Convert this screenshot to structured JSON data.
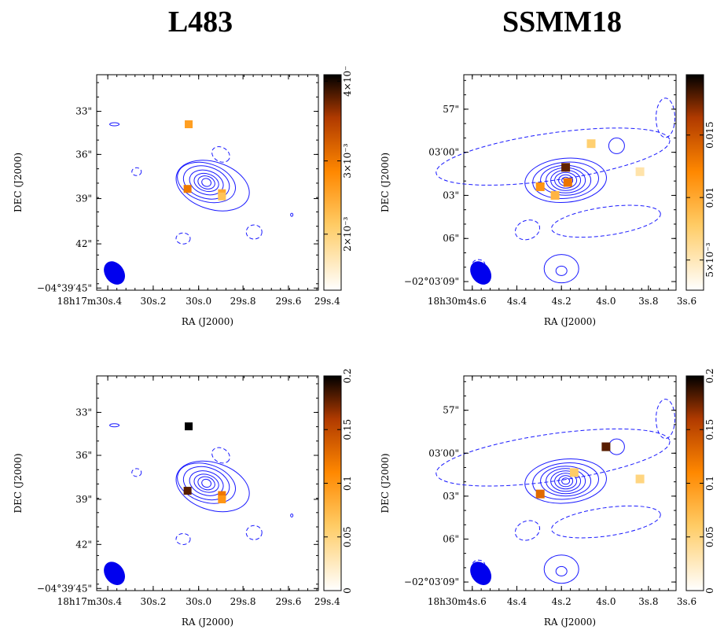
{
  "titles": {
    "left": "L483",
    "right": "SSMM18"
  },
  "colors": {
    "contour": "#1a1aff",
    "beam": "#0000ee"
  },
  "chart_data": [
    {
      "type": "heatmap",
      "id": "L483-top",
      "xlabel": "RA (J2000)",
      "ylabel": "DEC (J2000)",
      "xticks": [
        "18h17m30s.4",
        "30s.2",
        "30s.0",
        "29s.8",
        "29s.6",
        "29s.4"
      ],
      "yticks": [
        "33\"",
        "36\"",
        "39\"",
        "42\"",
        "−04°39′45\""
      ],
      "colorbar": {
        "ticks": [
          "2×10⁻³",
          "3×10⁻³",
          "4×10⁻"
        ]
      },
      "pixels": [
        {
          "ra_s": "30.0",
          "dec": "37.7\"",
          "value": 0.0026
        },
        {
          "ra_s": "30.0",
          "dec": "40.0\"",
          "value": 0.003
        },
        {
          "ra_s": "29.8",
          "dec": "40.5\"",
          "value": 0.0025
        },
        {
          "ra_s": "29.8",
          "dec": "41.0\"",
          "value": 0.0022
        }
      ]
    },
    {
      "type": "heatmap",
      "id": "SSMM18-top",
      "xlabel": "RA (J2000)",
      "ylabel": "DEC (J2000)",
      "xticks": [
        "18h30m4s.6",
        "4s.4",
        "4s.2",
        "4s.0",
        "3s.8",
        "3s.6"
      ],
      "yticks": [
        "57\"",
        "03′00\"",
        "03\"",
        "06\"",
        "−02°03′09\""
      ],
      "colorbar": {
        "ticks": [
          "5×10⁻³",
          "0.01",
          "0.015"
        ]
      },
      "pixels": [
        {
          "ra_s": "4.07",
          "dec": "02.0\"",
          "value": 0.017
        },
        {
          "ra_s": "4.10",
          "dec": "02.8\"",
          "value": 0.012
        },
        {
          "ra_s": "4.15",
          "dec": "03.5\"",
          "value": 0.01
        },
        {
          "ra_s": "4.19",
          "dec": "04.0\"",
          "value": 0.008
        },
        {
          "ra_s": "3.90",
          "dec": "00.5\"",
          "value": 0.006
        },
        {
          "ra_s": "3.75",
          "dec": "02.2\"",
          "value": 0.004
        }
      ]
    },
    {
      "type": "heatmap",
      "id": "L483-bottom",
      "xlabel": "RA (J2000)",
      "ylabel": "DEC (J2000)",
      "xticks": [
        "18h17m30s.4",
        "30s.2",
        "30s.0",
        "29s.8",
        "29s.6",
        "29s.4"
      ],
      "yticks": [
        "33\"",
        "36\"",
        "39\"",
        "42\"",
        "−04°39′45\""
      ],
      "colorbar": {
        "ticks": [
          "0",
          "0.05",
          "0.1",
          "0.15",
          "0.2"
        ]
      },
      "pixels": [
        {
          "ra_s": "30.0",
          "dec": "35.0\"",
          "value": 0.2
        },
        {
          "ra_s": "30.0",
          "dec": "40.0\"",
          "value": 0.18
        },
        {
          "ra_s": "29.8",
          "dec": "40.5\"",
          "value": 0.12
        },
        {
          "ra_s": "29.8",
          "dec": "41.0\"",
          "value": 0.1
        }
      ]
    },
    {
      "type": "heatmap",
      "id": "SSMM18-bottom",
      "xlabel": "RA (J2000)",
      "ylabel": "DEC (J2000)",
      "xticks": [
        "18h30m4s.6",
        "4s.4",
        "4s.2",
        "4s.0",
        "3s.8",
        "3s.6"
      ],
      "yticks": [
        "57\"",
        "03′00\"",
        "03\"",
        "06\"",
        "−02°03′09\""
      ],
      "colorbar": {
        "ticks": [
          "0",
          "0.05",
          "0.1",
          "0.15",
          "0.2"
        ]
      },
      "pixels": [
        {
          "ra_s": "3.90",
          "dec": "00.0\"",
          "value": 0.18
        },
        {
          "ra_s": "4.21",
          "dec": "03.8\"",
          "value": 0.13
        },
        {
          "ra_s": "4.10",
          "dec": "02.0\"",
          "value": 0.06
        },
        {
          "ra_s": "3.75",
          "dec": "02.2\"",
          "value": 0.05
        }
      ]
    }
  ]
}
